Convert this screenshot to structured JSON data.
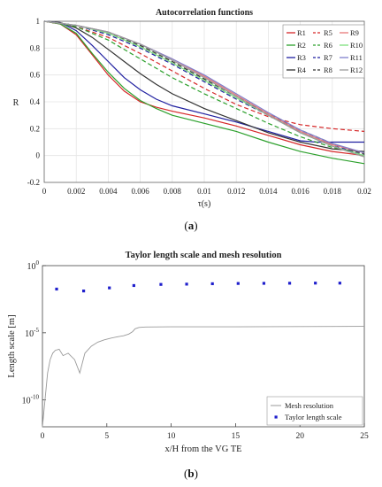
{
  "figure": {
    "caption_a": "(a)",
    "caption_a_parts": [
      "(",
      "a",
      ")"
    ],
    "caption_b_parts": [
      "(",
      "b",
      ")"
    ]
  },
  "chart_data": [
    {
      "type": "line",
      "title": "Autocorrelation functions",
      "xlabel": "τ(s)",
      "ylabel": "R",
      "xlim": [
        0,
        0.02
      ],
      "ylim": [
        -0.2,
        1
      ],
      "xticks": [
        0,
        0.002,
        0.004,
        0.006,
        0.008,
        0.01,
        0.012,
        0.014,
        0.016,
        0.018,
        0.02
      ],
      "yticks": [
        -0.2,
        0,
        0.2,
        0.4,
        0.6,
        0.8,
        1
      ],
      "grid": true,
      "legend_placement": "top-right",
      "legend_columns": 3,
      "series": [
        {
          "name": "R1",
          "color": "#d62728",
          "dash": "solid",
          "x": [
            0,
            0.001,
            0.002,
            0.003,
            0.004,
            0.005,
            0.006,
            0.007,
            0.008,
            0.01,
            0.012,
            0.014,
            0.016,
            0.018,
            0.02
          ],
          "y": [
            1,
            0.98,
            0.9,
            0.75,
            0.6,
            0.48,
            0.4,
            0.36,
            0.33,
            0.28,
            0.22,
            0.15,
            0.08,
            0.03,
            0.0
          ]
        },
        {
          "name": "R2",
          "color": "#2ca02c",
          "dash": "solid",
          "x": [
            0,
            0.001,
            0.002,
            0.003,
            0.004,
            0.005,
            0.006,
            0.007,
            0.008,
            0.01,
            0.012,
            0.014,
            0.016,
            0.018,
            0.02
          ],
          "y": [
            1,
            0.98,
            0.91,
            0.76,
            0.62,
            0.5,
            0.41,
            0.35,
            0.3,
            0.24,
            0.18,
            0.1,
            0.03,
            -0.02,
            -0.06
          ]
        },
        {
          "name": "R3",
          "color": "#1f1fa0",
          "dash": "solid",
          "x": [
            0,
            0.001,
            0.002,
            0.003,
            0.004,
            0.005,
            0.006,
            0.007,
            0.008,
            0.01,
            0.012,
            0.014,
            0.016,
            0.017,
            0.018,
            0.02
          ],
          "y": [
            1,
            0.99,
            0.93,
            0.82,
            0.7,
            0.58,
            0.49,
            0.42,
            0.37,
            0.31,
            0.25,
            0.18,
            0.11,
            0.1,
            0.1,
            0.1
          ]
        },
        {
          "name": "R4",
          "color": "#333333",
          "dash": "solid",
          "x": [
            0,
            0.001,
            0.002,
            0.003,
            0.004,
            0.005,
            0.006,
            0.007,
            0.008,
            0.01,
            0.012,
            0.014,
            0.016,
            0.018,
            0.02
          ],
          "y": [
            1,
            0.99,
            0.95,
            0.88,
            0.79,
            0.7,
            0.61,
            0.53,
            0.46,
            0.35,
            0.26,
            0.17,
            0.1,
            0.05,
            0.03
          ]
        },
        {
          "name": "R5",
          "color": "#d62728",
          "dash": "dashed",
          "x": [
            0,
            0.002,
            0.004,
            0.006,
            0.008,
            0.01,
            0.012,
            0.014,
            0.016,
            0.018,
            0.02
          ],
          "y": [
            1,
            0.96,
            0.88,
            0.76,
            0.63,
            0.5,
            0.38,
            0.29,
            0.23,
            0.2,
            0.18
          ]
        },
        {
          "name": "R6",
          "color": "#2ca02c",
          "dash": "dashed",
          "x": [
            0,
            0.002,
            0.004,
            0.006,
            0.008,
            0.01,
            0.012,
            0.014,
            0.016,
            0.018,
            0.02
          ],
          "y": [
            1,
            0.96,
            0.86,
            0.72,
            0.58,
            0.46,
            0.35,
            0.24,
            0.14,
            0.06,
            0.02
          ]
        },
        {
          "name": "R7",
          "color": "#1f1fa0",
          "dash": "dashed",
          "x": [
            0,
            0.002,
            0.004,
            0.006,
            0.008,
            0.01,
            0.012,
            0.014,
            0.016,
            0.018,
            0.02
          ],
          "y": [
            1,
            0.97,
            0.9,
            0.8,
            0.68,
            0.55,
            0.42,
            0.3,
            0.18,
            0.08,
            0.0
          ]
        },
        {
          "name": "R8",
          "color": "#333333",
          "dash": "dashed",
          "x": [
            0,
            0.002,
            0.004,
            0.006,
            0.008,
            0.01,
            0.012,
            0.014,
            0.016,
            0.018,
            0.02
          ],
          "y": [
            1,
            0.97,
            0.91,
            0.82,
            0.7,
            0.57,
            0.44,
            0.31,
            0.19,
            0.09,
            0.01
          ]
        },
        {
          "name": "R9",
          "color": "#e8787a",
          "dash": "solid",
          "x": [
            0,
            0.002,
            0.004,
            0.006,
            0.008,
            0.01,
            0.012,
            0.014,
            0.016,
            0.018,
            0.02
          ],
          "y": [
            1,
            0.97,
            0.92,
            0.83,
            0.72,
            0.59,
            0.45,
            0.31,
            0.18,
            0.08,
            0.02
          ]
        },
        {
          "name": "R10",
          "color": "#7ee07e",
          "dash": "solid",
          "x": [
            0,
            0.002,
            0.004,
            0.006,
            0.008,
            0.01,
            0.012,
            0.014,
            0.016,
            0.018,
            0.02
          ],
          "y": [
            1,
            0.97,
            0.91,
            0.81,
            0.69,
            0.56,
            0.43,
            0.3,
            0.17,
            0.07,
            0.0
          ]
        },
        {
          "name": "R11",
          "color": "#8080cc",
          "dash": "solid",
          "x": [
            0,
            0.002,
            0.004,
            0.006,
            0.008,
            0.01,
            0.012,
            0.014,
            0.016,
            0.018,
            0.02
          ],
          "y": [
            1,
            0.97,
            0.92,
            0.83,
            0.72,
            0.6,
            0.46,
            0.32,
            0.19,
            0.09,
            0.02
          ]
        },
        {
          "name": "R12",
          "color": "#9a9a9a",
          "dash": "solid",
          "x": [
            0,
            0.002,
            0.004,
            0.006,
            0.008,
            0.01,
            0.012,
            0.014,
            0.016,
            0.018,
            0.02
          ],
          "y": [
            1,
            0.97,
            0.92,
            0.83,
            0.71,
            0.58,
            0.44,
            0.3,
            0.17,
            0.07,
            -0.01
          ]
        }
      ]
    },
    {
      "type": "line",
      "title": "Taylor length scale and mesh resolution",
      "xlabel": "x/H from the VG TE",
      "ylabel": "Length scale [m]",
      "xlim": [
        0,
        25
      ],
      "yscale": "log",
      "ylim_exponent": [
        -12,
        0
      ],
      "xticks": [
        0,
        5,
        10,
        15,
        20,
        25
      ],
      "yticks": [
        {
          "value": 1,
          "base": "10",
          "exp": "0"
        },
        {
          "value": 1e-05,
          "base": "10",
          "exp": "-5"
        },
        {
          "value": 1e-10,
          "base": "10",
          "exp": "-10"
        }
      ],
      "grid": false,
      "legend_placement": "bottom-right",
      "series": [
        {
          "name": "Mesh resolution",
          "kind": "line",
          "color": "#9a9a9a",
          "x": [
            0,
            0.2,
            0.4,
            0.6,
            0.8,
            1.0,
            1.3,
            1.6,
            2.0,
            2.5,
            2.9,
            3.3,
            3.8,
            4.3,
            4.8,
            5.3,
            5.8,
            6.3,
            6.7,
            7.0,
            7.2,
            7.5,
            8,
            10,
            15,
            20,
            25
          ],
          "y": [
            1e-12,
            1e-10,
            1e-08,
            1e-07,
            3e-07,
            5e-07,
            6e-07,
            2e-07,
            3e-07,
            1e-07,
            1e-08,
            3e-07,
            1e-06,
            2e-06,
            3e-06,
            4e-06,
            5e-06,
            6e-06,
            8e-06,
            1.2e-05,
            2e-05,
            2.5e-05,
            2.7e-05,
            2.8e-05,
            2.8e-05,
            2.9e-05,
            3e-05
          ]
        },
        {
          "name": "Taylor length scale",
          "kind": "scatter",
          "color": "#1f1fcc",
          "x": [
            1.1,
            3.2,
            5.2,
            7.1,
            9.2,
            11.2,
            13.2,
            15.2,
            17.2,
            19.2,
            21.2,
            23.1
          ],
          "y": [
            0.018,
            0.013,
            0.022,
            0.033,
            0.04,
            0.042,
            0.045,
            0.047,
            0.048,
            0.049,
            0.05,
            0.05
          ]
        }
      ]
    }
  ]
}
